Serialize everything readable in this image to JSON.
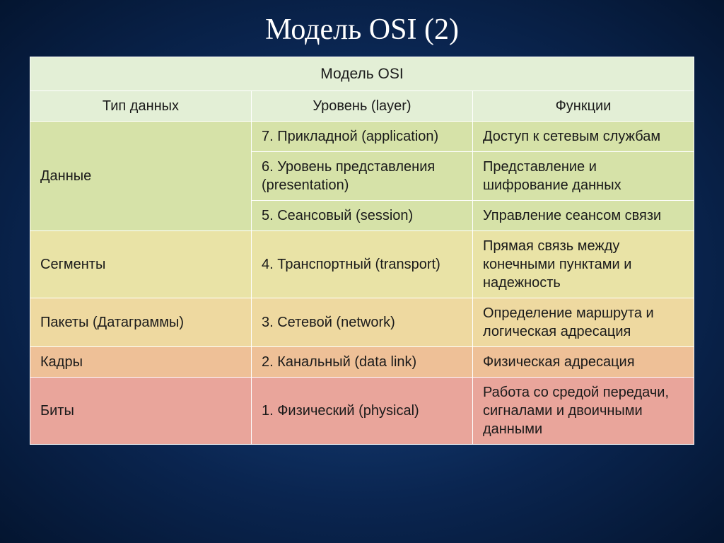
{
  "slide": {
    "title": "Модель OSI (2)",
    "title_color": "#ffffff",
    "title_fontsize": 42
  },
  "table": {
    "super_header": "Модель OSI",
    "headers": {
      "data_type": "Тип данных",
      "layer": "Уровень (layer)",
      "functions": "Функции"
    },
    "header_bg": "#e3efd6",
    "border_color": "#ffffff",
    "cell_fontsize": 20,
    "column_widths_pct": [
      24,
      38,
      38
    ],
    "rows": [
      {
        "data_type": "Данные",
        "data_type_rowspan": 3,
        "layer": "7. Прикладной (application)",
        "functions": "Доступ к сетевым службам",
        "bg": "#d6e2a8"
      },
      {
        "layer": "6. Уровень представления (presentation)",
        "functions": "Представление и шифрование данных",
        "bg": "#d6e2a8"
      },
      {
        "layer": "5. Сеансовый (session)",
        "functions": "Управление сеансом связи",
        "bg": "#d6e2a8"
      },
      {
        "data_type": "Сегменты",
        "layer": "4. Транспортный (transport)",
        "functions": "Прямая связь между конечными пунктами и надежность",
        "bg": "#e9e3a6"
      },
      {
        "data_type": "Пакеты (Датаграммы)",
        "layer": "3. Сетевой (network)",
        "functions": "Определение маршрута и логическая адресация",
        "bg": "#eed9a0"
      },
      {
        "data_type": "Кадры",
        "layer": "2. Канальный (data link)",
        "functions": "Физическая адресация",
        "bg": "#eec097"
      },
      {
        "data_type": "Биты",
        "layer": "1. Физический (physical)",
        "functions": "Работа со средой передачи, сигналами и двоичными данными",
        "bg": "#e9a59b"
      }
    ]
  },
  "styling": {
    "background_gradient": [
      "#1a4a8a",
      "#0a2550",
      "#041530"
    ],
    "text_color": "#1a1a1a",
    "font_family": "Arial"
  }
}
